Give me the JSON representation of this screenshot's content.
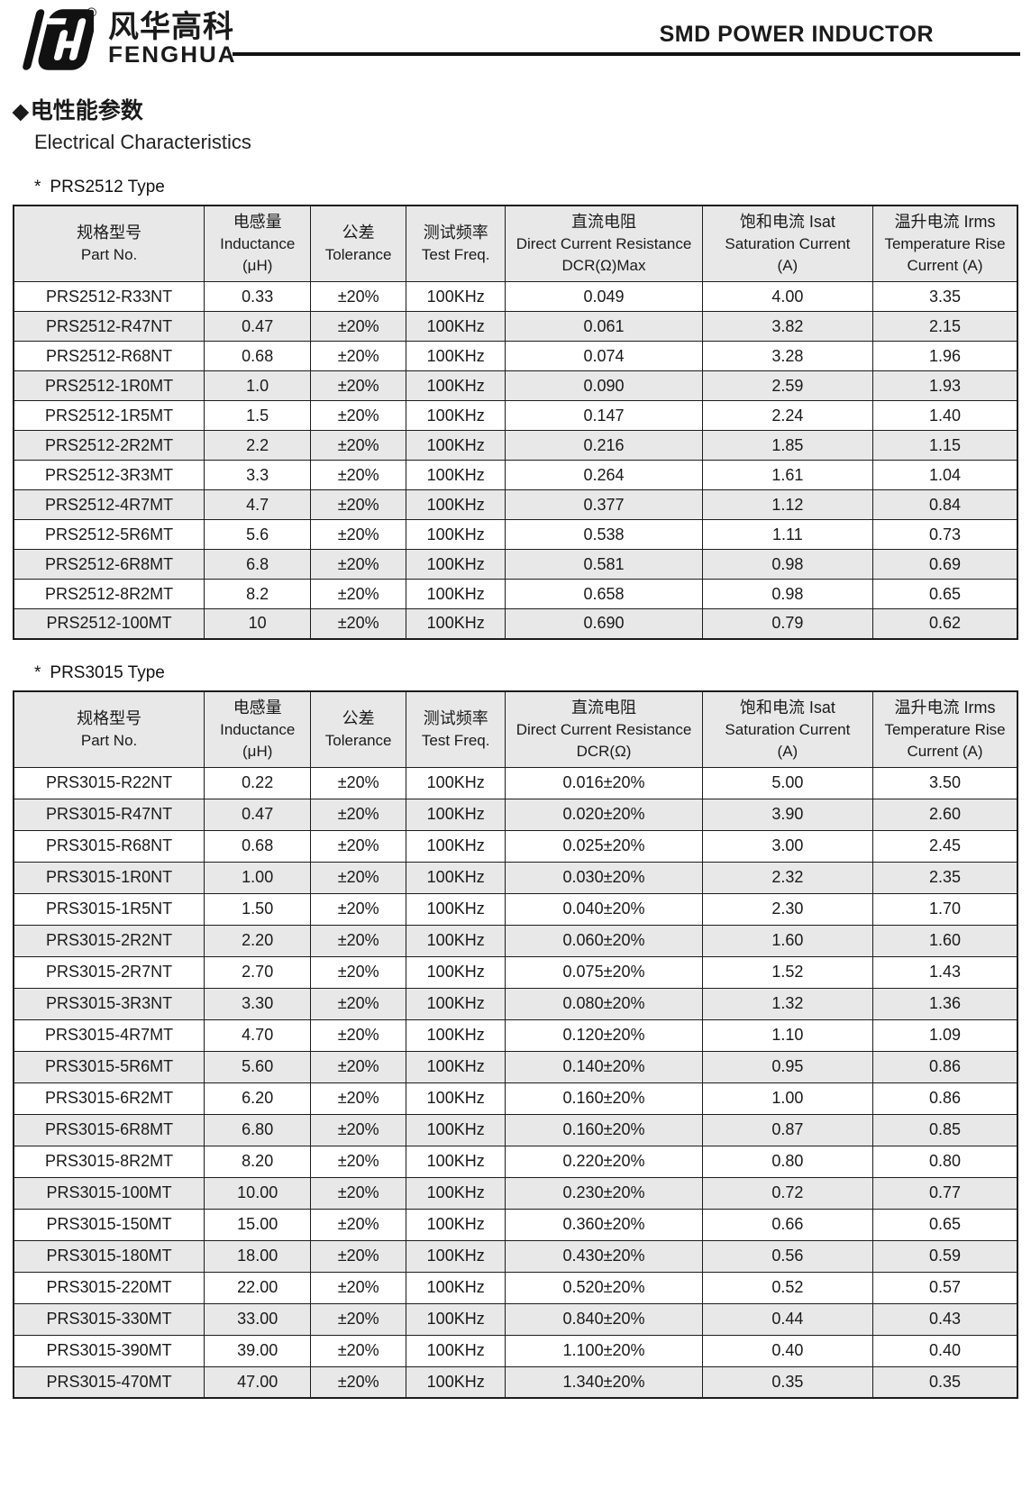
{
  "header": {
    "logo_cn": "风华高科",
    "logo_en": "FENGHUA",
    "registered_mark": "®",
    "product_title": "SMD POWER INDUCTOR"
  },
  "section": {
    "diamond": "◆",
    "title_cn": "电性能参数",
    "title_en": "Electrical Characteristics"
  },
  "tables": [
    {
      "caption_star": "*",
      "caption": "PRS2512 Type",
      "columns": [
        {
          "cn": "规格型号",
          "en": "Part No.",
          "unit": ""
        },
        {
          "cn": "电感量",
          "en": "Inductance",
          "unit": "(μH)"
        },
        {
          "cn": "公差",
          "en": "Tolerance",
          "unit": ""
        },
        {
          "cn": "测试频率",
          "en": "Test Freq.",
          "unit": ""
        },
        {
          "cn": "直流电阻",
          "en": "Direct Current Resistance",
          "unit": "DCR(Ω)Max"
        },
        {
          "cn": "饱和电流 Isat",
          "en": "Saturation Current",
          "unit": "(A)"
        },
        {
          "cn": "温升电流 Irms",
          "en": "Temperature Rise",
          "unit": "Current (A)"
        }
      ],
      "rows": [
        [
          "PRS2512-R33NT",
          "0.33",
          "±20%",
          "100KHz",
          "0.049",
          "4.00",
          "3.35"
        ],
        [
          "PRS2512-R47NT",
          "0.47",
          "±20%",
          "100KHz",
          "0.061",
          "3.82",
          "2.15"
        ],
        [
          "PRS2512-R68NT",
          "0.68",
          "±20%",
          "100KHz",
          "0.074",
          "3.28",
          "1.96"
        ],
        [
          "PRS2512-1R0MT",
          "1.0",
          "±20%",
          "100KHz",
          "0.090",
          "2.59",
          "1.93"
        ],
        [
          "PRS2512-1R5MT",
          "1.5",
          "±20%",
          "100KHz",
          "0.147",
          "2.24",
          "1.40"
        ],
        [
          "PRS2512-2R2MT",
          "2.2",
          "±20%",
          "100KHz",
          "0.216",
          "1.85",
          "1.15"
        ],
        [
          "PRS2512-3R3MT",
          "3.3",
          "±20%",
          "100KHz",
          "0.264",
          "1.61",
          "1.04"
        ],
        [
          "PRS2512-4R7MT",
          "4.7",
          "±20%",
          "100KHz",
          "0.377",
          "1.12",
          "0.84"
        ],
        [
          "PRS2512-5R6MT",
          "5.6",
          "±20%",
          "100KHz",
          "0.538",
          "1.11",
          "0.73"
        ],
        [
          "PRS2512-6R8MT",
          "6.8",
          "±20%",
          "100KHz",
          "0.581",
          "0.98",
          "0.69"
        ],
        [
          "PRS2512-8R2MT",
          "8.2",
          "±20%",
          "100KHz",
          "0.658",
          "0.98",
          "0.65"
        ],
        [
          "PRS2512-100MT",
          "10",
          "±20%",
          "100KHz",
          "0.690",
          "0.79",
          "0.62"
        ]
      ]
    },
    {
      "caption_star": "*",
      "caption": "PRS3015 Type",
      "columns": [
        {
          "cn": "规格型号",
          "en": "Part No.",
          "unit": ""
        },
        {
          "cn": "电感量",
          "en": "Inductance",
          "unit": "(μH)"
        },
        {
          "cn": "公差",
          "en": "Tolerance",
          "unit": ""
        },
        {
          "cn": "测试频率",
          "en": "Test Freq.",
          "unit": ""
        },
        {
          "cn": "直流电阻",
          "en": "Direct Current Resistance",
          "unit": "DCR(Ω)"
        },
        {
          "cn": "饱和电流 Isat",
          "en": "Saturation Current",
          "unit": "(A)"
        },
        {
          "cn": "温升电流 Irms",
          "en": "Temperature Rise",
          "unit": "Current (A)"
        }
      ],
      "rows": [
        [
          "PRS3015-R22NT",
          "0.22",
          "±20%",
          "100KHz",
          "0.016±20%",
          "5.00",
          "3.50"
        ],
        [
          "PRS3015-R47NT",
          "0.47",
          "±20%",
          "100KHz",
          "0.020±20%",
          "3.90",
          "2.60"
        ],
        [
          "PRS3015-R68NT",
          "0.68",
          "±20%",
          "100KHz",
          "0.025±20%",
          "3.00",
          "2.45"
        ],
        [
          "PRS3015-1R0NT",
          "1.00",
          "±20%",
          "100KHz",
          "0.030±20%",
          "2.32",
          "2.35"
        ],
        [
          "PRS3015-1R5NT",
          "1.50",
          "±20%",
          "100KHz",
          "0.040±20%",
          "2.30",
          "1.70"
        ],
        [
          "PRS3015-2R2NT",
          "2.20",
          "±20%",
          "100KHz",
          "0.060±20%",
          "1.60",
          "1.60"
        ],
        [
          "PRS3015-2R7NT",
          "2.70",
          "±20%",
          "100KHz",
          "0.075±20%",
          "1.52",
          "1.43"
        ],
        [
          "PRS3015-3R3NT",
          "3.30",
          "±20%",
          "100KHz",
          "0.080±20%",
          "1.32",
          "1.36"
        ],
        [
          "PRS3015-4R7MT",
          "4.70",
          "±20%",
          "100KHz",
          "0.120±20%",
          "1.10",
          "1.09"
        ],
        [
          "PRS3015-5R6MT",
          "5.60",
          "±20%",
          "100KHz",
          "0.140±20%",
          "0.95",
          "0.86"
        ],
        [
          "PRS3015-6R2MT",
          "6.20",
          "±20%",
          "100KHz",
          "0.160±20%",
          "1.00",
          "0.86"
        ],
        [
          "PRS3015-6R8MT",
          "6.80",
          "±20%",
          "100KHz",
          "0.160±20%",
          "0.87",
          "0.85"
        ],
        [
          "PRS3015-8R2MT",
          "8.20",
          "±20%",
          "100KHz",
          "0.220±20%",
          "0.80",
          "0.80"
        ],
        [
          "PRS3015-100MT",
          "10.00",
          "±20%",
          "100KHz",
          "0.230±20%",
          "0.72",
          "0.77"
        ],
        [
          "PRS3015-150MT",
          "15.00",
          "±20%",
          "100KHz",
          "0.360±20%",
          "0.66",
          "0.65"
        ],
        [
          "PRS3015-180MT",
          "18.00",
          "±20%",
          "100KHz",
          "0.430±20%",
          "0.56",
          "0.59"
        ],
        [
          "PRS3015-220MT",
          "22.00",
          "±20%",
          "100KHz",
          "0.520±20%",
          "0.52",
          "0.57"
        ],
        [
          "PRS3015-330MT",
          "33.00",
          "±20%",
          "100KHz",
          "0.840±20%",
          "0.44",
          "0.43"
        ],
        [
          "PRS3015-390MT",
          "39.00",
          "±20%",
          "100KHz",
          "1.100±20%",
          "0.40",
          "0.40"
        ],
        [
          "PRS3015-470MT",
          "47.00",
          "±20%",
          "100KHz",
          "1.340±20%",
          "0.35",
          "0.35"
        ]
      ]
    }
  ]
}
